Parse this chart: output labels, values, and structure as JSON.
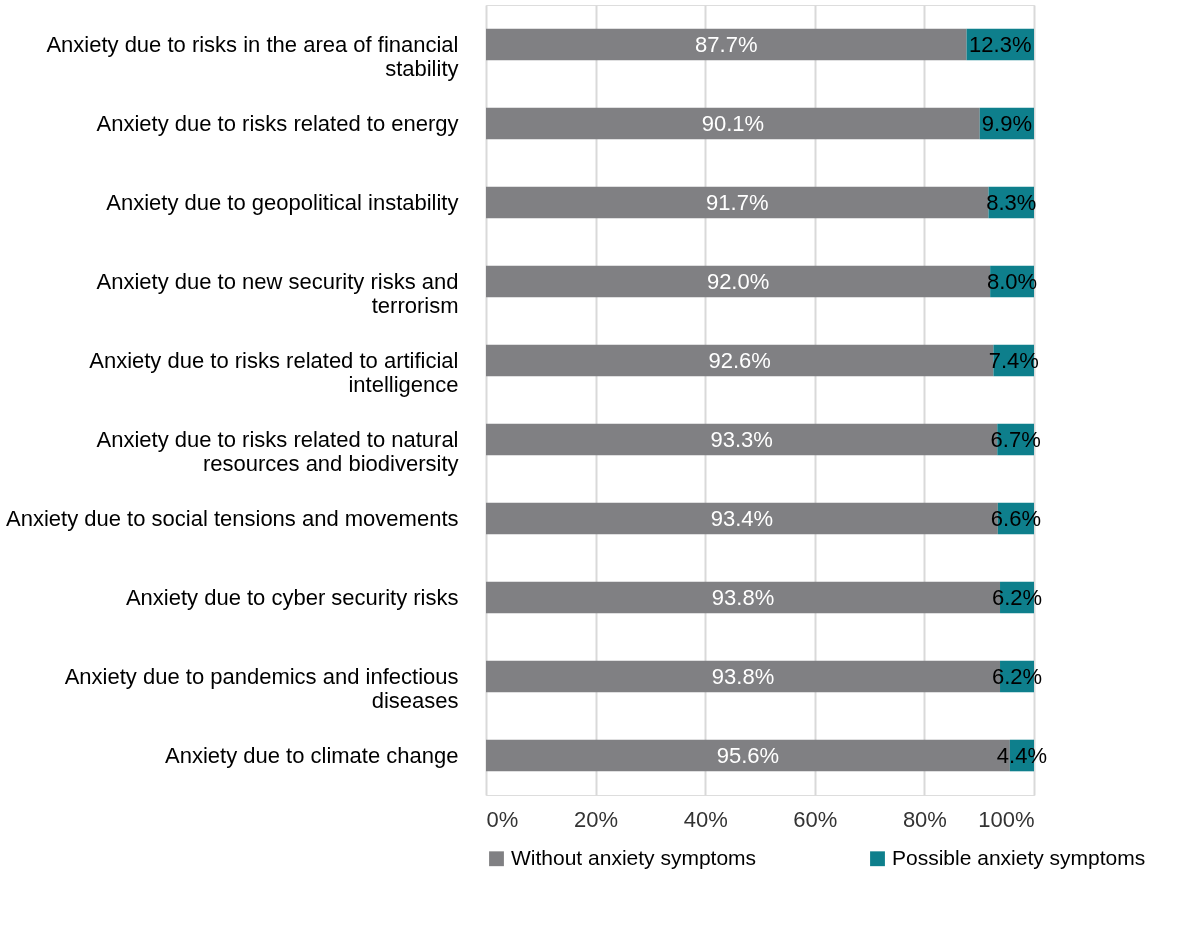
{
  "chart_data": {
    "type": "bar",
    "orientation": "horizontal",
    "stacked": true,
    "categories": [
      "Anxiety due to risks in the area of financial stability",
      "Anxiety due to risks related to energy",
      "Anxiety due to geopolitical instability",
      "Anxiety due to new security risks and terrorism",
      "Anxiety due to risks related to artificial intelligence",
      "Anxiety due to risks related to natural resources and biodiversity",
      "Anxiety due to social tensions and movements",
      "Anxiety due to cyber security risks",
      "Anxiety due to pandemics and infectious diseases",
      "Anxiety due to climate change"
    ],
    "series": [
      {
        "name": "Without anxiety symptoms",
        "color": "#808083",
        "values": [
          87.7,
          90.1,
          91.7,
          92.0,
          92.6,
          93.3,
          93.4,
          93.8,
          93.8,
          95.6
        ],
        "value_labels": [
          "87.7%",
          "90.1%",
          "91.7%",
          "92.0%",
          "92.6%",
          "93.3%",
          "93.4%",
          "93.8%",
          "93.8%",
          "95.6%"
        ]
      },
      {
        "name": "Possible anxiety symptoms",
        "color": "#0e7f8c",
        "values": [
          12.3,
          9.9,
          8.3,
          8.0,
          7.4,
          6.7,
          6.6,
          6.2,
          6.2,
          4.4
        ],
        "value_labels": [
          "12.3%",
          "9.9%",
          "8.3%",
          "8.0%",
          "7.4%",
          "6.7%",
          "6.6%",
          "6.2%",
          "6.2%",
          "4.4%"
        ]
      }
    ],
    "xlim": [
      0,
      100
    ],
    "xticks": [
      {
        "value": 0,
        "label": "0%"
      },
      {
        "value": 20,
        "label": "20%"
      },
      {
        "value": 40,
        "label": "40%"
      },
      {
        "value": 60,
        "label": "60%"
      },
      {
        "value": 80,
        "label": "80%"
      },
      {
        "value": 100,
        "label": "100%"
      }
    ],
    "grid": "x",
    "legend": "bottom"
  }
}
